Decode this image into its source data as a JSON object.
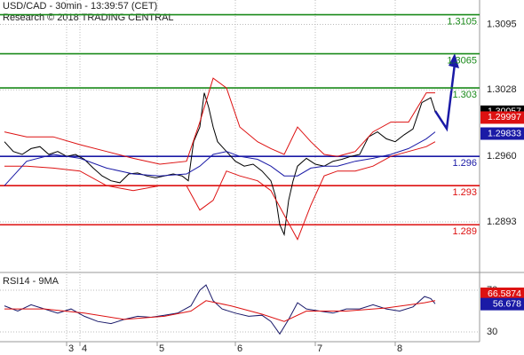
{
  "chart_data": [
    {
      "type": "line",
      "title": "USD/CAD - 30min - 13:39:57 (CET)",
      "subtitle": "Research © 2018 TRADING CENTRAL",
      "xlim": [
        0,
        540
      ],
      "xticks": [
        {
          "value": 75,
          "label": "3"
        },
        {
          "value": 90,
          "label": "4"
        },
        {
          "value": 177,
          "label": "5"
        },
        {
          "value": 265,
          "label": "6"
        },
        {
          "value": 355,
          "label": "7"
        },
        {
          "value": 445,
          "label": "8"
        }
      ],
      "ylim": [
        1.2843,
        1.312
      ],
      "yticks": [
        1.2893,
        {
          "value": 1.296,
          "label": "1.2960"
        },
        1.3028,
        1.3095
      ],
      "grid": true,
      "series": [
        {
          "color": "#000000",
          "x": [
            5,
            15,
            25,
            35,
            45,
            55,
            65,
            75,
            85,
            95,
            105,
            115,
            125,
            135,
            145,
            155,
            165,
            175,
            185,
            195,
            205,
            212,
            218,
            225,
            230,
            235,
            240,
            245,
            255,
            265,
            275,
            285,
            295,
            305,
            310,
            315,
            320,
            325,
            330,
            335,
            345,
            355,
            365,
            375,
            385,
            395,
            405,
            415,
            425,
            435,
            445,
            455,
            465,
            475,
            485,
            490
          ],
          "values": [
            1.2975,
            1.2965,
            1.2962,
            1.2968,
            1.297,
            1.2962,
            1.2965,
            1.296,
            1.2962,
            1.2957,
            1.2948,
            1.294,
            1.2935,
            1.2933,
            1.2942,
            1.2943,
            1.294,
            1.2938,
            1.294,
            1.2942,
            1.294,
            1.2935,
            1.2975,
            1.299,
            1.3025,
            1.301,
            1.299,
            1.2975,
            1.2965,
            1.2955,
            1.295,
            1.2952,
            1.2945,
            1.2935,
            1.292,
            1.289,
            1.288,
            1.2915,
            1.2935,
            1.295,
            1.2958,
            1.2952,
            1.295,
            1.2955,
            1.2957,
            1.296,
            1.2962,
            1.298,
            1.2985,
            1.2978,
            1.2975,
            1.2982,
            1.2988,
            1.3015,
            1.302,
            1.3006
          ]
        },
        {
          "color": "#dd1111",
          "x": [
            5,
            30,
            60,
            90,
            120,
            150,
            180,
            210,
            225,
            240,
            255,
            270,
            290,
            305,
            320,
            335,
            350,
            365,
            380,
            400,
            420,
            440,
            460,
            480,
            490
          ],
          "values": [
            1.2985,
            1.298,
            1.298,
            1.2972,
            1.2965,
            1.2958,
            1.2952,
            1.2955,
            1.2995,
            1.304,
            1.303,
            1.299,
            1.2975,
            1.2968,
            1.2962,
            1.299,
            1.2975,
            1.2962,
            1.296,
            1.2965,
            1.2985,
            1.2995,
            1.2995,
            1.3025,
            1.3025
          ]
        },
        {
          "color": "#dd1111",
          "x": [
            5,
            30,
            60,
            90,
            120,
            150,
            180,
            210,
            225,
            240,
            255,
            270,
            290,
            305,
            320,
            335,
            350,
            365,
            380,
            400,
            420,
            440,
            460,
            480,
            490
          ],
          "values": [
            1.295,
            1.295,
            1.2948,
            1.2945,
            1.293,
            1.2925,
            1.293,
            1.293,
            1.2905,
            1.2915,
            1.2945,
            1.294,
            1.2935,
            1.2925,
            1.29,
            1.2875,
            1.291,
            1.294,
            1.2945,
            1.2945,
            1.295,
            1.296,
            1.2965,
            1.297,
            1.2975
          ]
        },
        {
          "color": "#1a1aa6",
          "x": [
            5,
            30,
            60,
            90,
            120,
            150,
            180,
            210,
            225,
            240,
            255,
            270,
            290,
            305,
            320,
            335,
            350,
            365,
            380,
            400,
            420,
            440,
            460,
            480,
            490
          ],
          "values": [
            1.293,
            1.2955,
            1.2962,
            1.2958,
            1.2948,
            1.2942,
            1.294,
            1.2942,
            1.295,
            1.2962,
            1.2965,
            1.296,
            1.2957,
            1.295,
            1.294,
            1.294,
            1.2948,
            1.295,
            1.295,
            1.2955,
            1.2958,
            1.2962,
            1.2968,
            1.2978,
            1.2985
          ]
        }
      ],
      "levels": [
        {
          "value": 1.3105,
          "color": "#1a8a1a"
        },
        {
          "value": 1.3065,
          "color": "#1a8a1a"
        },
        {
          "value": 1.303,
          "color": "#1a8a1a"
        },
        {
          "value": 1.296,
          "color": "#1a1aa6"
        },
        {
          "value": 1.293,
          "color": "#dd1111"
        },
        {
          "value": 1.289,
          "color": "#dd1111"
        }
      ],
      "markers": [
        {
          "value": 1.30057,
          "color": "#000000"
        },
        {
          "value": 1.29997,
          "color": "#dd1111"
        },
        {
          "value": 1.29833,
          "color": "#1a1aa6"
        }
      ]
    },
    {
      "type": "line",
      "title": "RSI14 - 9MA",
      "xlim": [
        0,
        540
      ],
      "ylim": [
        22.3,
        84.5
      ],
      "yticks": [
        30,
        70
      ],
      "grid": true,
      "series": [
        {
          "color": "#1a1a6a",
          "x": [
            5,
            20,
            35,
            50,
            65,
            80,
            95,
            110,
            125,
            140,
            155,
            170,
            185,
            200,
            215,
            225,
            232,
            240,
            250,
            265,
            280,
            295,
            305,
            315,
            325,
            335,
            345,
            360,
            375,
            390,
            405,
            420,
            435,
            450,
            465,
            478,
            485,
            490
          ],
          "values": [
            55,
            50,
            56,
            52,
            48,
            52,
            45,
            40,
            38,
            42,
            45,
            44,
            46,
            48,
            55,
            70,
            75,
            60,
            52,
            48,
            45,
            46,
            40,
            28,
            42,
            58,
            52,
            50,
            48,
            52,
            52,
            56,
            52,
            50,
            54,
            64,
            62,
            57
          ]
        },
        {
          "color": "#dd1111",
          "x": [
            5,
            50,
            95,
            140,
            185,
            215,
            232,
            260,
            295,
            320,
            345,
            390,
            435,
            478,
            490
          ],
          "values": [
            52,
            52,
            48,
            42,
            45,
            50,
            60,
            55,
            47,
            40,
            50,
            50,
            53,
            58,
            60
          ]
        }
      ],
      "markers": [
        {
          "value": 66.5874,
          "color": "#dd1111"
        },
        {
          "value": 56.678,
          "color": "#1a1aa6"
        }
      ]
    }
  ]
}
